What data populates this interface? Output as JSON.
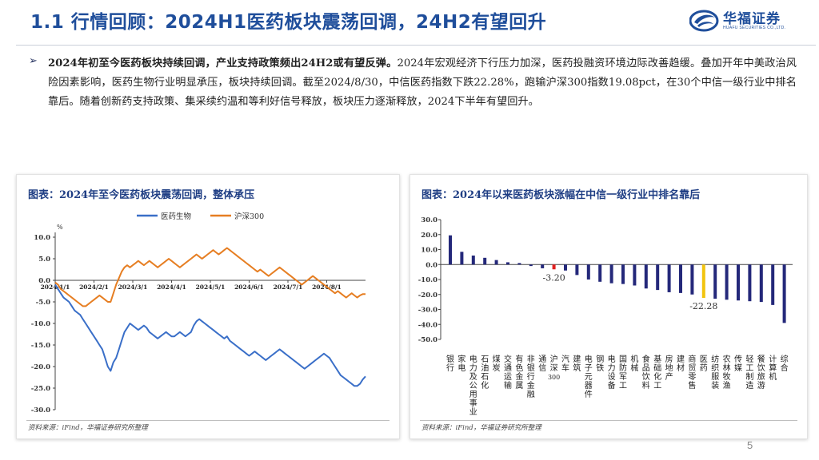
{
  "header": {
    "title": "1.1 行情回顾：2024H1医药板块震荡回调，24H2有望回升",
    "logo_name": "华福证券",
    "logo_en": "HUAFU SECURITIES CO.,LTD."
  },
  "summary": {
    "bullet_symbol": "➢",
    "headline": "2024年初至今医药板块持续回调，产业支持政策频出24H2或有望反弹。",
    "body": "2024年宏观经济下行压力加深，医药投融资环境边际改善趋缓。叠加开年中美政治风险因素影响，医药生物行业明显承压，板块持续回调。截至2024/8/30，中信医药指数下跌22.28%，跑输沪深300指数19.08pct，在30个中信一级行业中排名靠后。随着创新药支持政策、集采续约温和等利好信号释放，板块压力逐渐释放，2024下半年有望回升。"
  },
  "left_panel": {
    "title": "图表：2024年至今医药板块震荡回调，整体承压",
    "source": "资料来源：iFind，华福证券研究所整理"
  },
  "right_panel": {
    "title": "图表：2024年以来医药板块涨幅在中信一级行业中排名靠后",
    "source": "资料来源：iFind，华福证券研究所整理"
  },
  "colors": {
    "brand": "#1f4e9b",
    "series_blue": "#3a6fc8",
    "series_orange": "#e67e22",
    "bar_navy": "#24287a",
    "bar_red": "#e02020",
    "bar_yellow": "#f2c40f"
  },
  "chart_data": [
    {
      "type": "line",
      "title": "图表：2024年至今医药板块震荡回调，整体承压",
      "unit_label": "%",
      "ylim": [
        -30,
        10
      ],
      "yticks": [
        10,
        5,
        0,
        -5,
        -10,
        -15,
        -20,
        -25,
        -30
      ],
      "ytick_labels": [
        "10.0",
        "5.0",
        "0.0",
        "-5.0",
        "-10.0",
        "-15.0",
        "-20.0",
        "-25.0",
        "-30.0"
      ],
      "xtick_labels": [
        "2024/1/1",
        "2024/2/1",
        "2024/3/1",
        "2024/4/1",
        "2024/5/1",
        "2024/6/1",
        "2024/7/1",
        "2024/8/1"
      ],
      "legend_position": "top",
      "series": [
        {
          "name": "医药生物",
          "color": "#3a6fc8",
          "values": [
            -1,
            -2,
            -3,
            -4,
            -4.5,
            -5,
            -6,
            -7,
            -7.5,
            -8,
            -9,
            -10,
            -11,
            -12,
            -13,
            -14,
            -15,
            -16,
            -18,
            -20,
            -21,
            -19,
            -18,
            -16,
            -14,
            -12,
            -11,
            -10,
            -10.5,
            -11,
            -11.5,
            -11,
            -10.5,
            -11,
            -12,
            -12.5,
            -13,
            -13.5,
            -13,
            -12.5,
            -12,
            -12.5,
            -13,
            -13,
            -12.5,
            -12,
            -12.5,
            -13,
            -12.5,
            -12,
            -10.5,
            -9.5,
            -9,
            -9.5,
            -10,
            -10.5,
            -11,
            -11.5,
            -12,
            -12.5,
            -13,
            -13.5,
            -13,
            -14,
            -14.5,
            -15,
            -15.5,
            -16,
            -16.5,
            -17,
            -17.5,
            -17,
            -16.5,
            -17,
            -17.5,
            -18,
            -18.5,
            -18,
            -17.5,
            -17,
            -16.5,
            -16,
            -16.5,
            -17,
            -17.5,
            -18,
            -18.5,
            -19,
            -19.5,
            -20,
            -20.5,
            -20,
            -19.5,
            -19,
            -18.5,
            -18,
            -17.5,
            -17,
            -17.5,
            -18,
            -19,
            -20,
            -21,
            -22,
            -22.5,
            -23,
            -23.5,
            -24,
            -24.5,
            -24.5,
            -24,
            -23,
            -22.28
          ]
        },
        {
          "name": "沪深300",
          "color": "#e67e22",
          "values": [
            -0.5,
            -1,
            -2,
            -2.5,
            -3,
            -3.5,
            -4,
            -4.5,
            -5,
            -5.5,
            -6,
            -6,
            -5.5,
            -5,
            -4.5,
            -4,
            -3.5,
            -4,
            -4.5,
            -5,
            -5,
            -3,
            -1,
            0.5,
            2,
            3,
            3.5,
            3,
            3.5,
            4,
            4.5,
            4,
            3.5,
            4,
            4.5,
            4,
            3.5,
            3,
            3.5,
            4,
            4.5,
            5,
            4.5,
            4,
            3.5,
            3,
            3.5,
            4,
            4.5,
            5,
            5.5,
            6,
            5.5,
            5,
            5.5,
            6,
            6.5,
            7,
            6.5,
            6,
            6.5,
            7,
            7.5,
            7,
            6.5,
            6,
            5.5,
            5,
            4.5,
            4,
            3.5,
            3,
            2.5,
            2,
            2.5,
            2,
            1.5,
            1,
            1.5,
            2,
            2.5,
            3,
            2.5,
            2,
            1.5,
            1,
            0.5,
            0,
            -0.5,
            -1,
            -0.5,
            0,
            0.5,
            1,
            0.5,
            0,
            -0.5,
            -1,
            -1.5,
            -2,
            -2.5,
            -3,
            -2.5,
            -3,
            -3.5,
            -4,
            -3.5,
            -3,
            -3.5,
            -4,
            -3.5,
            -3.2,
            -3.2
          ]
        }
      ]
    },
    {
      "type": "bar",
      "title": "图表：2024年以来医药板块涨幅在中信一级行业中排名靠后",
      "ylim": [
        -50,
        30
      ],
      "yticks": [
        30,
        20,
        10,
        0,
        -10,
        -20,
        -30,
        -40,
        -50
      ],
      "ytick_labels": [
        "30.0",
        "20.0",
        "10.0",
        "0.0",
        "-10.0",
        "-20.0",
        "-30.0",
        "-40.0",
        "-50.0"
      ],
      "categories": [
        "银行",
        "家用电器",
        "电力及公用事业",
        "石油石化",
        "煤炭",
        "交通运输",
        "有色金属",
        "非银行金融",
        "通信",
        "沪深300",
        "汽车",
        "建筑",
        "电子元器件",
        "钢铁",
        "电力设备",
        "国防军工",
        "机械",
        "食品饮料",
        "基础化工",
        "房地产",
        "建材",
        "商贸零售",
        "医药",
        "纺织服装",
        "农林牧渔",
        "传媒",
        "轻工制造",
        "餐饮旅游",
        "计算机",
        "综合"
      ],
      "category_labels": [
        "银行",
        "家电",
        "电力及公用事业",
        "石油石化",
        "煤炭",
        "交通运输",
        "有色金属",
        "非银行金融",
        "通信",
        "沪深300",
        "汽车",
        "建筑",
        "电子元器件",
        "钢铁",
        "电力设备",
        "国防军工",
        "机械",
        "食品饮料",
        "基础化工",
        "房地产",
        "建材",
        "商贸零售",
        "医药",
        "纺织服装",
        "农林牧渔",
        "传媒",
        "轻工制造",
        "餐饮旅游",
        "计算机",
        "综合"
      ],
      "values": [
        19.5,
        8.5,
        6.0,
        4.5,
        3.0,
        1.5,
        1.0,
        -1.0,
        -2.5,
        -3.2,
        -4.0,
        -7.0,
        -10.0,
        -11.5,
        -12.5,
        -13.0,
        -14.0,
        -16.0,
        -17.0,
        -18.5,
        -19.0,
        -20.0,
        -22.28,
        -22.8,
        -23.5,
        -24.0,
        -24.5,
        -25.0,
        -27.0,
        -39.0
      ],
      "highlight": {
        "沪深300": "#e02020",
        "医药": "#f2c40f"
      },
      "data_labels": [
        {
          "category": "沪深300",
          "text": "-3.20"
        },
        {
          "category": "医药",
          "text": "-22.28"
        }
      ]
    }
  ],
  "page_number": "5"
}
